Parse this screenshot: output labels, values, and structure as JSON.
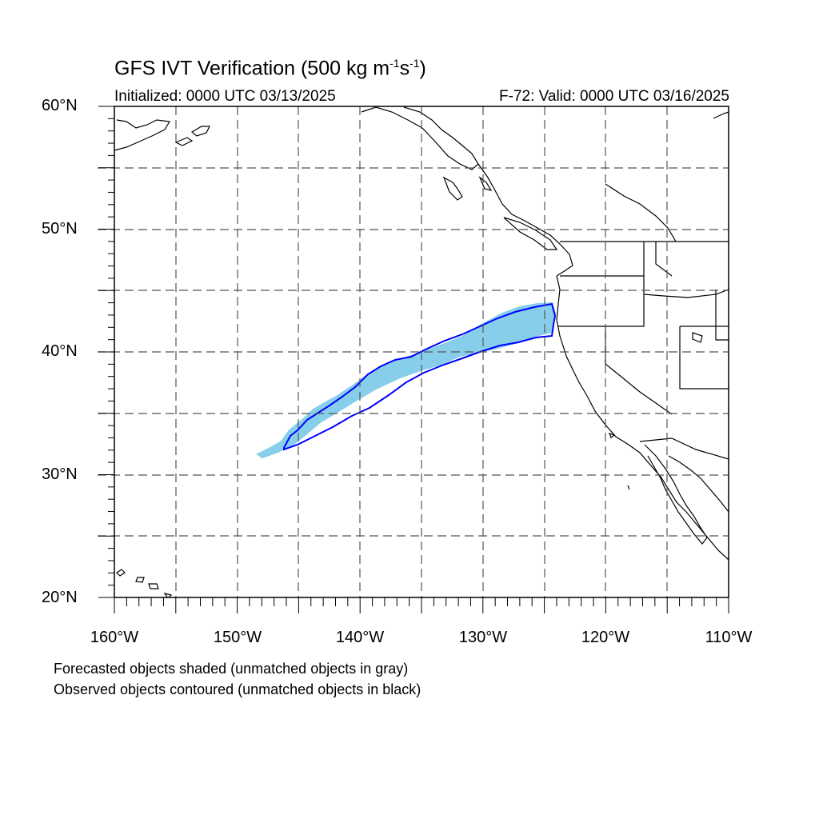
{
  "title": {
    "main": "GFS IVT Verification (500 kg m",
    "exp1": "-1",
    "mid": "s",
    "exp2": "-1",
    "end": ")"
  },
  "subtitle_left": "Initialized: 0000 UTC 03/13/2025",
  "subtitle_right": "F-72: Valid: 0000 UTC 03/16/2025",
  "map": {
    "lon_range": [
      -160,
      -110
    ],
    "lat_range": [
      20,
      60
    ],
    "lat_labels": [
      "60°N",
      "50°N",
      "40°N",
      "30°N",
      "20°N"
    ],
    "lon_labels": [
      "160°W",
      "150°W",
      "140°W",
      "130°W",
      "120°W",
      "110°W"
    ],
    "grid_style": "dashed",
    "forecast_object_color": "#87ceeb",
    "observed_contour_color": "#0000ff",
    "coastline_color": "#000000"
  },
  "captions": {
    "line1": "Forecasted objects shaded (unmatched objects in gray)",
    "line2": "Observed objects contoured (unmatched objects in black)"
  }
}
